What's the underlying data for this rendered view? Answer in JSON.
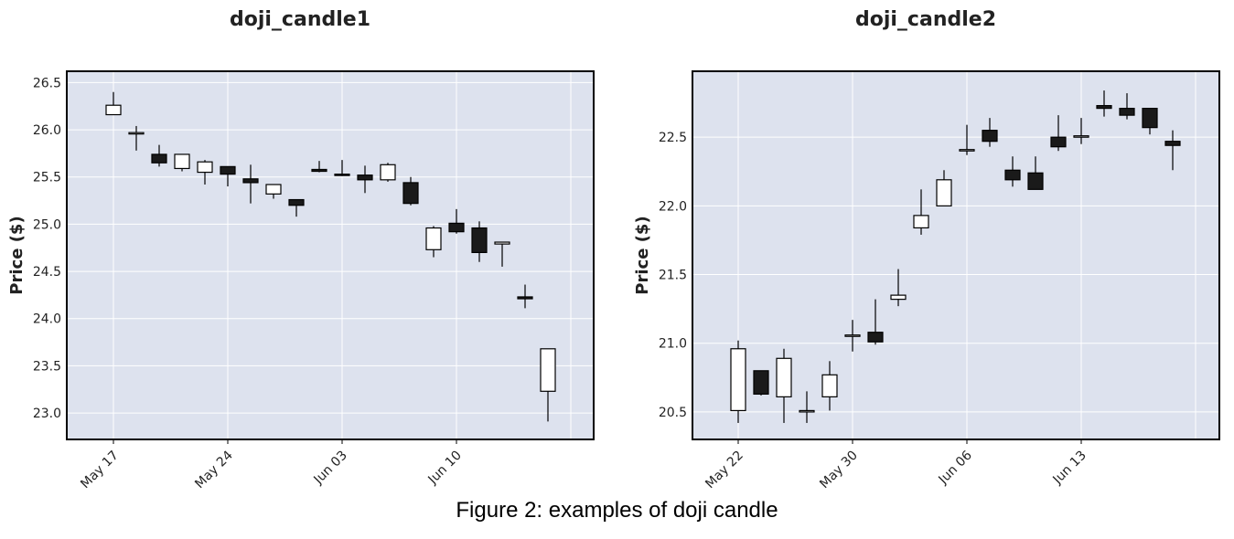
{
  "caption": "Figure 2: examples of doji candle",
  "colors": {
    "up": "#ffffff",
    "down": "#1a1a1a",
    "panel": "#dde2ee",
    "grid": "#ffffff",
    "edge": "#000000"
  },
  "chart_data": [
    {
      "type": "candlestick",
      "title": "doji_candle1",
      "ylabel": "Price ($)",
      "ylim": [
        22.72,
        26.62
      ],
      "yticks": [
        23.0,
        23.5,
        24.0,
        24.5,
        25.0,
        25.5,
        26.0,
        26.5
      ],
      "ytick_labels": [
        "23.0",
        "23.5",
        "24.0",
        "24.5",
        "25.0",
        "25.5",
        "26.0",
        "26.5"
      ],
      "grid": true,
      "xticks": [
        {
          "label": "May 17",
          "index": 0
        },
        {
          "label": "May 24",
          "index": 5
        },
        {
          "label": "Jun 03",
          "index": 10
        },
        {
          "label": "Jun 10",
          "index": 15
        }
      ],
      "candles": [
        {
          "o": 26.16,
          "h": 26.4,
          "l": 26.16,
          "c": 26.26
        },
        {
          "o": 25.97,
          "h": 26.04,
          "l": 25.78,
          "c": 25.97
        },
        {
          "o": 25.74,
          "h": 25.84,
          "l": 25.61,
          "c": 25.65
        },
        {
          "o": 25.59,
          "h": 25.74,
          "l": 25.56,
          "c": 25.74
        },
        {
          "o": 25.55,
          "h": 25.68,
          "l": 25.42,
          "c": 25.66
        },
        {
          "o": 25.61,
          "h": 25.61,
          "l": 25.4,
          "c": 25.53
        },
        {
          "o": 25.48,
          "h": 25.63,
          "l": 25.22,
          "c": 25.44
        },
        {
          "o": 25.32,
          "h": 25.42,
          "l": 25.27,
          "c": 25.42
        },
        {
          "o": 25.26,
          "h": 25.26,
          "l": 25.08,
          "c": 25.2
        },
        {
          "o": 25.58,
          "h": 25.67,
          "l": 25.55,
          "c": 25.56
        },
        {
          "o": 25.53,
          "h": 25.68,
          "l": 25.51,
          "c": 25.52
        },
        {
          "o": 25.52,
          "h": 25.62,
          "l": 25.33,
          "c": 25.47
        },
        {
          "o": 25.47,
          "h": 25.65,
          "l": 25.45,
          "c": 25.63
        },
        {
          "o": 25.44,
          "h": 25.5,
          "l": 25.2,
          "c": 25.22
        },
        {
          "o": 24.73,
          "h": 24.98,
          "l": 24.65,
          "c": 24.96
        },
        {
          "o": 25.01,
          "h": 25.16,
          "l": 24.9,
          "c": 24.92
        },
        {
          "o": 24.96,
          "h": 25.03,
          "l": 24.6,
          "c": 24.7
        },
        {
          "o": 24.79,
          "h": 24.81,
          "l": 24.55,
          "c": 24.81
        },
        {
          "o": 24.23,
          "h": 24.36,
          "l": 24.11,
          "c": 24.21
        },
        {
          "o": 23.23,
          "h": 23.68,
          "l": 22.91,
          "c": 23.68
        }
      ]
    },
    {
      "type": "candlestick",
      "title": "doji_candle2",
      "ylabel": "Price ($)",
      "ylim": [
        20.3,
        22.98
      ],
      "yticks": [
        20.5,
        21.0,
        21.5,
        22.0,
        22.5
      ],
      "ytick_labels": [
        "20.5",
        "21.0",
        "21.5",
        "22.0",
        "22.5"
      ],
      "grid": true,
      "xticks": [
        {
          "label": "May 22",
          "index": 0
        },
        {
          "label": "May 30",
          "index": 5
        },
        {
          "label": "Jun 06",
          "index": 10
        },
        {
          "label": "Jun 13",
          "index": 15
        }
      ],
      "candles": [
        {
          "o": 20.51,
          "h": 21.02,
          "l": 20.42,
          "c": 20.96
        },
        {
          "o": 20.8,
          "h": 20.8,
          "l": 20.62,
          "c": 20.63
        },
        {
          "o": 20.61,
          "h": 20.96,
          "l": 20.42,
          "c": 20.89
        },
        {
          "o": 20.51,
          "h": 20.65,
          "l": 20.42,
          "c": 20.51
        },
        {
          "o": 20.61,
          "h": 20.87,
          "l": 20.51,
          "c": 20.77
        },
        {
          "o": 21.06,
          "h": 21.17,
          "l": 20.94,
          "c": 21.06
        },
        {
          "o": 21.08,
          "h": 21.32,
          "l": 20.99,
          "c": 21.01
        },
        {
          "o": 21.32,
          "h": 21.54,
          "l": 21.27,
          "c": 21.35
        },
        {
          "o": 21.84,
          "h": 22.12,
          "l": 21.79,
          "c": 21.93
        },
        {
          "o": 22.0,
          "h": 22.26,
          "l": 22.0,
          "c": 22.19
        },
        {
          "o": 22.4,
          "h": 22.59,
          "l": 22.37,
          "c": 22.41
        },
        {
          "o": 22.55,
          "h": 22.64,
          "l": 22.43,
          "c": 22.47
        },
        {
          "o": 22.26,
          "h": 22.36,
          "l": 22.14,
          "c": 22.19
        },
        {
          "o": 22.24,
          "h": 22.36,
          "l": 22.12,
          "c": 22.12
        },
        {
          "o": 22.5,
          "h": 22.66,
          "l": 22.4,
          "c": 22.43
        },
        {
          "o": 22.5,
          "h": 22.64,
          "l": 22.45,
          "c": 22.51
        },
        {
          "o": 22.73,
          "h": 22.84,
          "l": 22.65,
          "c": 22.71
        },
        {
          "o": 22.71,
          "h": 22.82,
          "l": 22.63,
          "c": 22.66
        },
        {
          "o": 22.71,
          "h": 22.71,
          "l": 22.52,
          "c": 22.57
        },
        {
          "o": 22.47,
          "h": 22.55,
          "l": 22.26,
          "c": 22.44
        }
      ]
    }
  ]
}
